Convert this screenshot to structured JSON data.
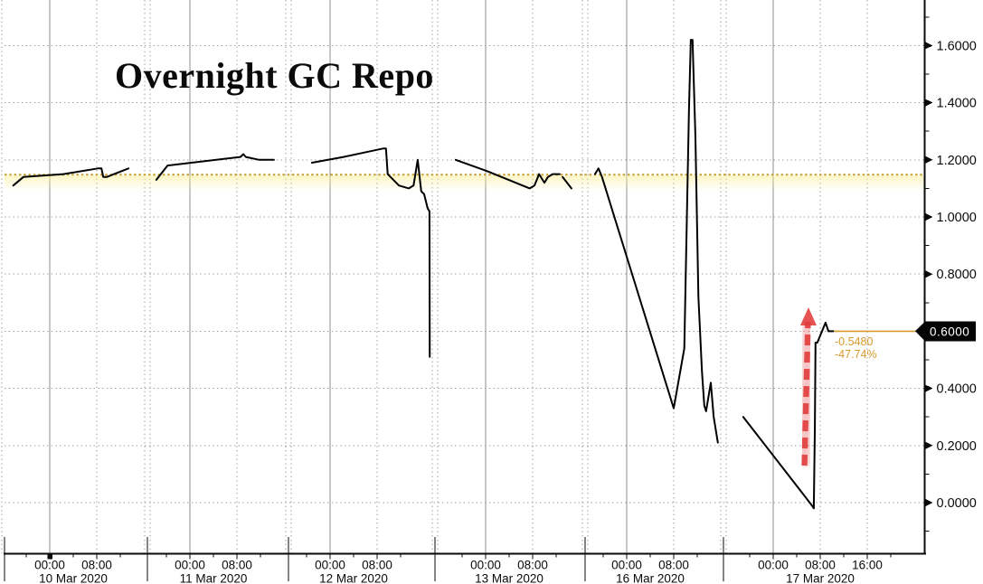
{
  "title": "Overnight GC Repo",
  "colors": {
    "price_line": "#000000",
    "reference_gold": "#c2a02c",
    "accent_orange": "#d8992c",
    "arrow_red": "#e13b3b",
    "grid_gray": "#9f9f9f",
    "tag_bg": "#050505",
    "tag_text": "#ffffff"
  },
  "last_price_tag": "0.6000",
  "annotation": {
    "net_change": "-0.5480",
    "pct_change": "-47.74%"
  },
  "y_axis": {
    "highlighted_value": 0.6,
    "labels": [
      {
        "value": 1.6,
        "label": "1.6000"
      },
      {
        "value": 1.4,
        "label": "1.4000"
      },
      {
        "value": 1.2,
        "label": "1.2000"
      },
      {
        "value": 1.0,
        "label": "1.0000"
      },
      {
        "value": 0.8,
        "label": "0.8000"
      },
      {
        "value": 0.6,
        "label": "0.6000"
      },
      {
        "value": 0.4,
        "label": "0.4000"
      },
      {
        "value": 0.2,
        "label": "0.2000"
      },
      {
        "value": 0.0,
        "label": "0.0000"
      }
    ]
  },
  "x_axis": {
    "sections": [
      {
        "date": "10 Mar 2020",
        "ticks": [
          {
            "label": "00:00",
            "hour": 0
          },
          {
            "label": "08:00",
            "hour": 8
          }
        ]
      },
      {
        "date": "11 Mar 2020",
        "ticks": [
          {
            "label": "00:00",
            "hour": 0
          },
          {
            "label": "08:00",
            "hour": 8
          }
        ]
      },
      {
        "date": "12 Mar 2020",
        "ticks": [
          {
            "label": "00:00",
            "hour": 0
          },
          {
            "label": "08:00",
            "hour": 8
          }
        ]
      },
      {
        "date": "13 Mar 2020",
        "ticks": [
          {
            "label": "00:00",
            "hour": 0
          },
          {
            "label": "08:00",
            "hour": 8
          }
        ]
      },
      {
        "date": "16 Mar 2020",
        "ticks": [
          {
            "label": "00:00",
            "hour": 0
          },
          {
            "label": "08:00",
            "hour": 8
          }
        ]
      },
      {
        "date": "17 Mar 2020",
        "ticks": [
          {
            "label": "00:00",
            "hour": 0
          },
          {
            "label": "08:00",
            "hour": 8
          },
          {
            "label": "16:00",
            "hour": 16
          }
        ]
      }
    ]
  },
  "chart_data": {
    "type": "line",
    "title": "Overnight GC Repo",
    "xlabel": "",
    "ylabel": "",
    "x_unit": "hours relative to each date's midnight (negative = prior evening)",
    "ylim": [
      -0.18,
      1.76
    ],
    "y_ticks": [
      0.0,
      0.2,
      0.4,
      0.6,
      0.8,
      1.0,
      1.2,
      1.4,
      1.6
    ],
    "grid": true,
    "legend": "none",
    "reference_level": 1.148,
    "last_value": 0.6,
    "net_change": -0.548,
    "pct_change": -47.74,
    "session_high": 1.62,
    "session_low": -0.02,
    "segments": [
      {
        "date": "10 Mar 2020",
        "points": [
          [
            -6.2,
            1.11
          ],
          [
            -4.5,
            1.14
          ],
          [
            2.3,
            1.15
          ],
          [
            8.2,
            1.17
          ],
          [
            8.8,
            1.17
          ],
          [
            9.1,
            1.14
          ],
          [
            9.7,
            1.14
          ],
          [
            13.4,
            1.17
          ]
        ]
      },
      {
        "date": "11 Mar 2020",
        "points": [
          [
            -5.7,
            1.13
          ],
          [
            -3.8,
            1.18
          ],
          [
            8.6,
            1.21
          ],
          [
            9.1,
            1.22
          ],
          [
            9.5,
            1.21
          ],
          [
            11.8,
            1.2
          ],
          [
            14.3,
            1.2
          ]
        ]
      },
      {
        "date": "12 Mar 2020",
        "points": [
          [
            -3.1,
            1.19
          ],
          [
            2.3,
            1.21
          ],
          [
            9.1,
            1.24
          ],
          [
            9.5,
            1.24
          ],
          [
            9.8,
            1.15
          ],
          [
            11.7,
            1.11
          ],
          [
            13.4,
            1.1
          ],
          [
            14.2,
            1.11
          ],
          [
            14.9,
            1.2
          ],
          [
            15.5,
            1.09
          ],
          [
            16.0,
            1.08
          ],
          [
            16.6,
            1.03
          ],
          [
            16.9,
            1.02
          ],
          [
            16.95,
            0.51
          ]
        ]
      },
      {
        "date": "13 Mar 2020",
        "points": [
          [
            -5.1,
            1.2
          ],
          [
            0.3,
            1.16
          ],
          [
            7.5,
            1.1
          ],
          [
            8.3,
            1.11
          ],
          [
            9.1,
            1.15
          ],
          [
            10.0,
            1.12
          ],
          [
            10.6,
            1.14
          ],
          [
            11.4,
            1.15
          ],
          [
            12.6,
            1.15
          ]
        ]
      },
      {
        "date": "13 Mar 2020",
        "points": [
          [
            13.1,
            1.14
          ],
          [
            14.6,
            1.1
          ]
        ]
      },
      {
        "date": "16 Mar 2020",
        "points": [
          [
            -5.4,
            1.15
          ],
          [
            -4.8,
            1.17
          ],
          [
            -4.2,
            1.14
          ],
          [
            8.0,
            0.33
          ],
          [
            9.8,
            0.54
          ],
          [
            10.6,
            1.38
          ],
          [
            10.9,
            1.62
          ],
          [
            11.2,
            1.62
          ],
          [
            11.7,
            1.28
          ],
          [
            12.2,
            0.72
          ],
          [
            12.8,
            0.46
          ],
          [
            13.2,
            0.34
          ],
          [
            13.5,
            0.32
          ],
          [
            14.3,
            0.42
          ],
          [
            14.8,
            0.3
          ],
          [
            15.5,
            0.21
          ]
        ]
      },
      {
        "date": "17 Mar 2020",
        "points": [
          [
            -5.1,
            0.3
          ],
          [
            6.6,
            -0.01
          ],
          [
            6.9,
            -0.02
          ],
          [
            7.1,
            0.27
          ],
          [
            7.2,
            0.56
          ],
          [
            7.5,
            0.56
          ],
          [
            8.9,
            0.63
          ],
          [
            9.4,
            0.6
          ],
          [
            10.2,
            0.6
          ]
        ]
      }
    ]
  }
}
